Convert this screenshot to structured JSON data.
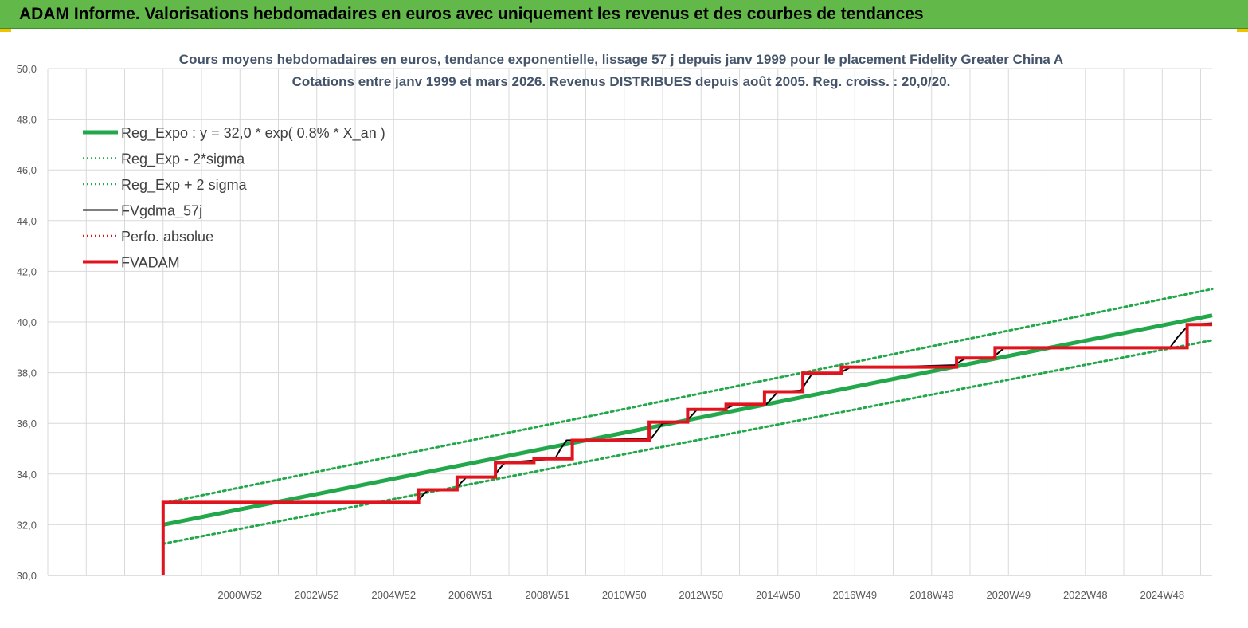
{
  "header": {
    "title": "ADAM Informe. Valorisations hebdomadaires en euros avec uniquement les revenus et des courbes de tendances"
  },
  "chart_data": {
    "type": "line",
    "title_line1": "Cours moyens hebdomadaires en euros, tendance exponentielle, lissage 57 j depuis janv 1999 pour le placement Fidelity Greater China A",
    "title_line2": "Cotations entre janv 1999 et mars 2026. Revenus DISTRIBUES depuis août 2005. Reg. croiss. : 20,0/20.",
    "ylim": [
      30,
      50
    ],
    "xlim": [
      1996,
      2026.3
    ],
    "y_ticks": [
      "30,0",
      "32,0",
      "34,0",
      "36,0",
      "38,0",
      "40,0",
      "42,0",
      "44,0",
      "46,0",
      "48,0",
      "50,0"
    ],
    "x_ticks": [
      {
        "label": "2000W52",
        "x": 2001
      },
      {
        "label": "2002W52",
        "x": 2003
      },
      {
        "label": "2004W52",
        "x": 2005
      },
      {
        "label": "2006W51",
        "x": 2007
      },
      {
        "label": "2008W51",
        "x": 2009
      },
      {
        "label": "2010W50",
        "x": 2011
      },
      {
        "label": "2012W50",
        "x": 2013
      },
      {
        "label": "2014W50",
        "x": 2015
      },
      {
        "label": "2016W49",
        "x": 2017
      },
      {
        "label": "2018W49",
        "x": 2019
      },
      {
        "label": "2020W49",
        "x": 2021
      },
      {
        "label": "2022W48",
        "x": 2023
      },
      {
        "label": "2024W48",
        "x": 2025
      }
    ],
    "grid": true,
    "legend_position": "top-left",
    "series": [
      {
        "name": "Reg_Expo : y = 32,0 * exp( 0,8% *  X_an )",
        "color": "#22a84a",
        "style": "thick",
        "x": [
          1999,
          2026.3
        ],
        "y": [
          32.0,
          40.26
        ]
      },
      {
        "name": "Reg_Exp - 2*sigma",
        "color": "#22a84a",
        "style": "dotted",
        "x": [
          1999,
          2026.3
        ],
        "y": [
          31.25,
          39.28
        ]
      },
      {
        "name": "Reg_Exp + 2 sigma",
        "color": "#22a84a",
        "style": "dotted",
        "x": [
          1999,
          2026.3
        ],
        "y": [
          32.85,
          41.3
        ]
      },
      {
        "name": "FVgdma_57j",
        "color": "#000000",
        "style": "solid",
        "x": [
          1999,
          1999,
          2005.6,
          2005.75,
          2005.9,
          2006.6,
          2006.75,
          2006.9,
          2007.6,
          2007.75,
          2007.9,
          2009.2,
          2009.35,
          2009.5,
          2011.7,
          2011.85,
          2012.0,
          2012.6,
          2012.75,
          2012.9,
          2013.6,
          2013.75,
          2013.9,
          2014.7,
          2014.85,
          2015.0,
          2015.6,
          2015.75,
          2015.9,
          2016.6,
          2016.75,
          2016.9,
          2017.6,
          2017.75,
          2017.9,
          2019.6,
          2019.75,
          2019.9,
          2020.6,
          2020.75,
          2020.9,
          2025.2,
          2025.4,
          2025.7,
          2026.3
        ],
        "y": [
          30.0,
          32.88,
          32.88,
          33.15,
          33.38,
          33.38,
          33.65,
          33.88,
          33.88,
          34.2,
          34.45,
          34.6,
          35.0,
          35.33,
          35.4,
          35.7,
          36.0,
          36.05,
          36.3,
          36.55,
          36.55,
          36.65,
          36.75,
          36.75,
          37.0,
          37.25,
          37.3,
          37.65,
          37.98,
          37.98,
          38.1,
          38.22,
          38.22,
          38.22,
          38.22,
          38.3,
          38.45,
          38.58,
          38.6,
          38.8,
          38.98,
          38.98,
          39.4,
          39.9,
          39.95
        ]
      },
      {
        "name": "Perfo. absolue",
        "color": "#e0141e",
        "style": "dotted",
        "x": [],
        "y": []
      },
      {
        "name": "FVADAM",
        "color": "#e0141e",
        "style": "thick",
        "x": [
          1999,
          1999,
          2005.65,
          2005.65,
          2006.65,
          2006.65,
          2007.65,
          2007.65,
          2008.65,
          2008.65,
          2009.65,
          2009.65,
          2011.65,
          2011.65,
          2012.65,
          2012.65,
          2013.65,
          2013.65,
          2014.65,
          2014.65,
          2015.65,
          2015.65,
          2016.65,
          2016.65,
          2017.65,
          2017.65,
          2019.65,
          2019.65,
          2020.65,
          2020.65,
          2025.65,
          2025.65,
          2026.3
        ],
        "y": [
          30.0,
          32.88,
          32.88,
          33.38,
          33.38,
          33.88,
          33.88,
          34.45,
          34.45,
          34.6,
          34.6,
          35.33,
          35.33,
          36.05,
          36.05,
          36.55,
          36.55,
          36.75,
          36.75,
          37.25,
          37.25,
          37.98,
          37.98,
          38.22,
          38.22,
          38.22,
          38.22,
          38.58,
          38.58,
          38.98,
          38.98,
          39.9,
          39.9
        ]
      }
    ]
  }
}
